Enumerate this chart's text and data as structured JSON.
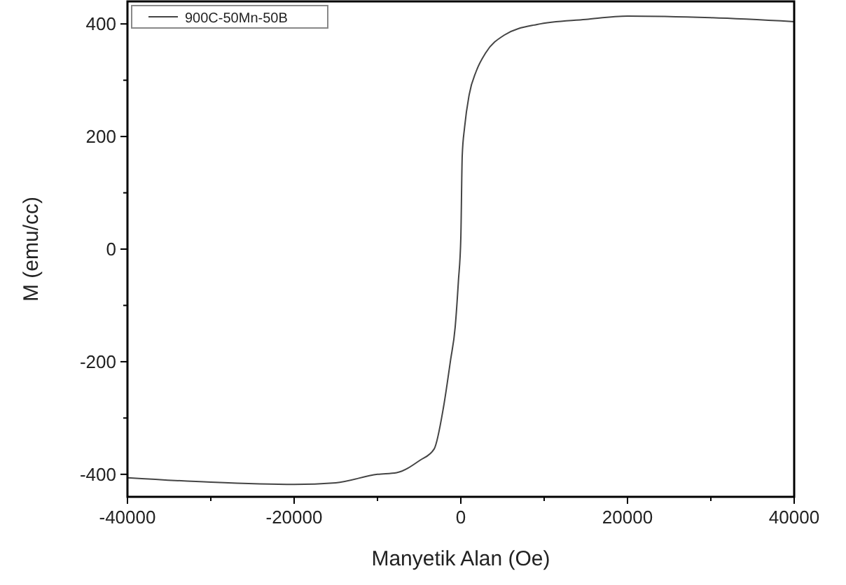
{
  "chart_data": {
    "type": "line",
    "xlabel": "Manyetik Alan (Oe)",
    "ylabel": "M (emu/cc)",
    "xlim": [
      -40000,
      40000
    ],
    "ylim": [
      -440,
      440
    ],
    "xticks": [
      -40000,
      {
        "value": -30000,
        "label": null
      },
      -20000,
      {
        "value": -10000,
        "label": null
      },
      0,
      {
        "value": 10000,
        "label": null
      },
      20000,
      {
        "value": 30000,
        "label": null
      },
      40000
    ],
    "yticks": [
      -400,
      {
        "value": -300,
        "label": null
      },
      -200,
      {
        "value": -100,
        "label": null
      },
      0,
      {
        "value": 100,
        "label": null
      },
      200,
      {
        "value": 300,
        "label": null
      },
      400
    ],
    "legend": "top left",
    "grid": false,
    "marker": "none",
    "line_style": "solid",
    "series": [
      {
        "name": "900C-50Mn-50B",
        "color": "#444444",
        "x": [
          -40000,
          -30000,
          -20000,
          -15000,
          -10000,
          -7700,
          -4900,
          -3200,
          -2070,
          -1240,
          -680,
          -290,
          0,
          170,
          450,
          1000,
          1850,
          3000,
          5200,
          9150,
          15000,
          20000,
          30000,
          40000
        ],
        "values": [
          -406,
          -414,
          -418,
          -415,
          -400,
          -397,
          -375,
          -355,
          -280,
          -198,
          -139,
          -57,
          20,
          166,
          216,
          274,
          316,
          349,
          380,
          399,
          408,
          414,
          411,
          404
        ]
      }
    ]
  }
}
